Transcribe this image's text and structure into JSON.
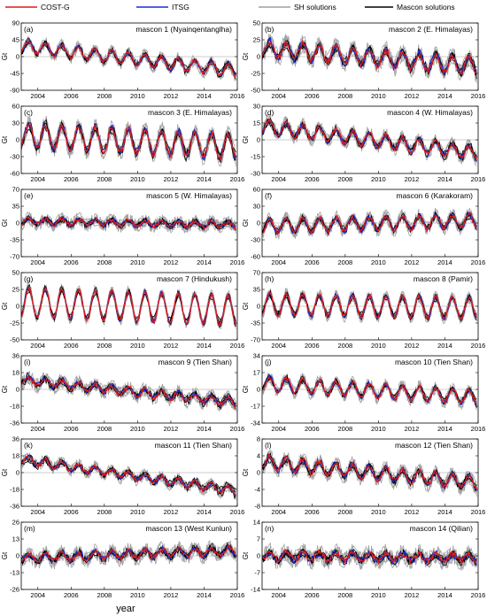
{
  "legend": [
    {
      "label": "COST-G",
      "color": "#e41a1c"
    },
    {
      "label": "ITSG",
      "color": "#1f2bd6"
    },
    {
      "label": "SH solutions",
      "color": "#a0a0a0"
    },
    {
      "label": "Mascon solutions",
      "color": "#000000"
    }
  ],
  "xlabel": "year",
  "ylabel": "Gt",
  "chart_data": {
    "type": "line",
    "x_ticks": [
      2004,
      2006,
      2008,
      2010,
      2012,
      2014,
      2016
    ],
    "xlim": [
      2003,
      2016
    ],
    "panels": [
      {
        "letter": "(a)",
        "title": "mascon  1 (Nyainqentanglha)",
        "yticks": [
          90,
          45,
          0,
          -45,
          -90
        ],
        "ylim": [
          -90,
          90
        ],
        "amplitude": 16,
        "trend": [
          28,
          -38
        ],
        "noise": 10
      },
      {
        "letter": "(b)",
        "title": "mascon  2 (E. Himalayas)",
        "yticks": [
          50,
          25,
          0,
          -25,
          -50
        ],
        "ylim": [
          -50,
          50
        ],
        "amplitude": 12,
        "trend": [
          12,
          -14
        ],
        "noise": 9
      },
      {
        "letter": "(c)",
        "title": "mascon  3 (E. Himalayas)",
        "yticks": [
          60,
          30,
          0,
          -30,
          -60
        ],
        "ylim": [
          -60,
          60
        ],
        "amplitude": 22,
        "trend": [
          8,
          -12
        ],
        "noise": 10
      },
      {
        "letter": "(d)",
        "title": "mascon  4 (W. Himalayas)",
        "yticks": [
          30,
          15,
          0,
          -15,
          -30
        ],
        "ylim": [
          -30,
          30
        ],
        "amplitude": 6,
        "trend": [
          12,
          -12
        ],
        "noise": 4
      },
      {
        "letter": "(e)",
        "title": "mascon  5 (W. Himalayas)",
        "yticks": [
          70,
          35,
          0,
          -35,
          -70
        ],
        "ylim": [
          -70,
          70
        ],
        "amplitude": 6,
        "trend": [
          4,
          -4
        ],
        "noise": 9
      },
      {
        "letter": "(f)",
        "title": "mascon  6 (Karakoram)",
        "yticks": [
          60,
          30,
          0,
          -30,
          -60
        ],
        "ylim": [
          -60,
          60
        ],
        "amplitude": 12,
        "trend": [
          -6,
          4
        ],
        "noise": 8
      },
      {
        "letter": "(g)",
        "title": "mascon  7 (Hindukush)",
        "yticks": [
          50,
          25,
          0,
          -25,
          -50
        ],
        "ylim": [
          -50,
          50
        ],
        "amplitude": 22,
        "trend": [
          6,
          -6
        ],
        "noise": 5
      },
      {
        "letter": "(h)",
        "title": "mascon  8 (Pamir)",
        "yticks": [
          70,
          35,
          0,
          -35,
          -70
        ],
        "ylim": [
          -70,
          70
        ],
        "amplitude": 22,
        "trend": [
          4,
          -4
        ],
        "noise": 8
      },
      {
        "letter": "(i)",
        "title": "mascon  9 (Tien Shan)",
        "yticks": [
          36,
          18,
          0,
          -18,
          -36
        ],
        "ylim": [
          -36,
          36
        ],
        "amplitude": 4,
        "trend": [
          10,
          -14
        ],
        "noise": 5
      },
      {
        "letter": "(j)",
        "title": "mascon 10 (Tien Shan)",
        "yticks": [
          34,
          17,
          0,
          -17,
          -34
        ],
        "ylim": [
          -34,
          34
        ],
        "amplitude": 7,
        "trend": [
          6,
          -8
        ],
        "noise": 4
      },
      {
        "letter": "(k)",
        "title": "mascon 11 (Tien Shan)",
        "yticks": [
          36,
          18,
          0,
          -18,
          -36
        ],
        "ylim": [
          -36,
          36
        ],
        "amplitude": 4,
        "trend": [
          14,
          -20
        ],
        "noise": 4
      },
      {
        "letter": "(l)",
        "title": "mascon 12 (Tien Shan)",
        "yticks": [
          8,
          4,
          0,
          -4,
          -8
        ],
        "ylim": [
          -8,
          8
        ],
        "amplitude": 1.5,
        "trend": [
          2.5,
          -2.5
        ],
        "noise": 1.2
      },
      {
        "letter": "(m)",
        "title": "mascon 13 (West Kunlun)",
        "yticks": [
          26,
          13,
          0,
          -13,
          -26
        ],
        "ylim": [
          -26,
          26
        ],
        "amplitude": 3,
        "trend": [
          -2,
          4
        ],
        "noise": 4
      },
      {
        "letter": "(n)",
        "title": "mascon 14 (Qilian)",
        "yticks": [
          14,
          7,
          0,
          -7,
          -14
        ],
        "ylim": [
          -14,
          14
        ],
        "amplitude": 1.5,
        "trend": [
          0,
          -1
        ],
        "noise": 2.5
      }
    ]
  }
}
